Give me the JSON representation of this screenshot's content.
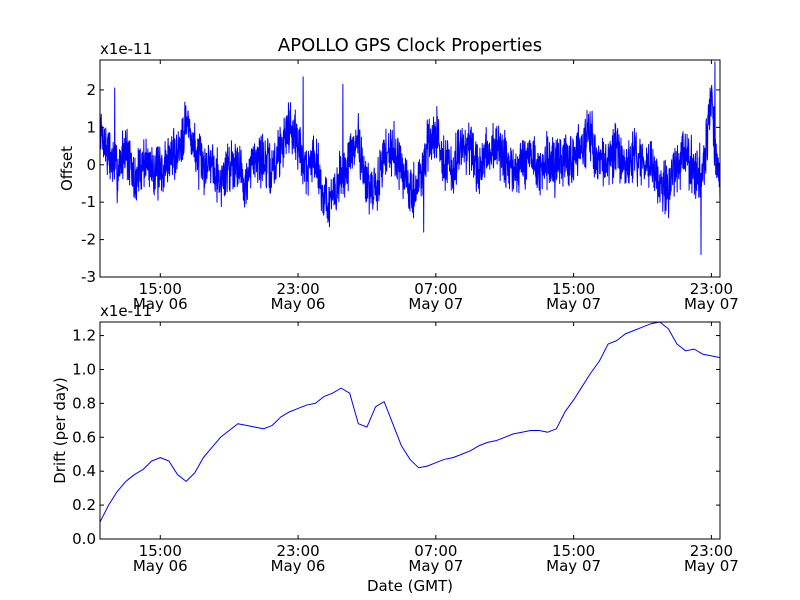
{
  "chart_data": [
    {
      "type": "line",
      "title": "APOLLO GPS Clock Properties",
      "ylabel": "Offset",
      "xlabel": "",
      "scale_label": "x1e-11",
      "ylim": [
        -3,
        2.8
      ],
      "yticks": [
        -3,
        -2,
        -1,
        0,
        1,
        2
      ],
      "ytick_labels": [
        "-3",
        "-2",
        "-1",
        "0",
        "1",
        "2"
      ],
      "xlim_hours": [
        11.5,
        47.5
      ],
      "xticks": [
        {
          "time": "15:00",
          "date": "May 06",
          "hour": 15
        },
        {
          "time": "23:00",
          "date": "May 06",
          "hour": 23
        },
        {
          "time": "07:00",
          "date": "May 07",
          "hour": 31
        },
        {
          "time": "15:00",
          "date": "May 07",
          "hour": 39
        },
        {
          "time": "23:00",
          "date": "May 07",
          "hour": 47
        }
      ],
      "color": "#0000ff",
      "grid": false,
      "series": [
        {
          "x": [
            11.5,
            12,
            12.5,
            13,
            13.5,
            14,
            14.5,
            15,
            15.5,
            16,
            16.5,
            17,
            17.5,
            18,
            18.5,
            19,
            19.5,
            20,
            20.5,
            21,
            21.5,
            22,
            22.5,
            23,
            23.5,
            24,
            24.5,
            25,
            25.5,
            26,
            26.5,
            27,
            27.5,
            28,
            28.5,
            29,
            29.5,
            30,
            30.5,
            31,
            31.5,
            32,
            32.5,
            33,
            33.5,
            34,
            34.5,
            35,
            35.5,
            36,
            36.5,
            37,
            37.5,
            38,
            38.5,
            39,
            39.5,
            40,
            40.5,
            41,
            41.5,
            42,
            42.5,
            43,
            43.5,
            44,
            44.5,
            45,
            45.5,
            46,
            46.5,
            47,
            47.5
          ],
          "y": [
            0.9,
            0.3,
            -0.2,
            0.5,
            -0.5,
            0.1,
            0.0,
            -0.3,
            0.2,
            0.3,
            1.2,
            0.4,
            -0.1,
            0.2,
            -0.5,
            0.0,
            0.1,
            -0.6,
            0.3,
            0.1,
            -0.2,
            0.5,
            1.1,
            0.6,
            -0.2,
            0.3,
            -0.9,
            -1.0,
            -0.3,
            0.1,
            0.7,
            -0.6,
            -0.8,
            0.3,
            0.5,
            -0.1,
            -0.8,
            -0.5,
            0.4,
            0.9,
            0.1,
            -0.2,
            0.5,
            0.4,
            -0.3,
            0.3,
            0.5,
            0.1,
            -0.2,
            0.0,
            0.3,
            -0.2,
            0.1,
            -0.1,
            0.1,
            0.2,
            0.5,
            0.8,
            0.0,
            0.1,
            0.4,
            -0.2,
            0.3,
            -0.1,
            0.2,
            -0.5,
            -0.8,
            0.0,
            0.2,
            -0.1,
            -0.3,
            1.7,
            -1.0
          ],
          "extremes": [
            {
              "x": 12.35,
              "y": 2.05
            },
            {
              "x": 23.3,
              "y": 2.35
            },
            {
              "x": 25.6,
              "y": 2.15
            },
            {
              "x": 30.3,
              "y": -1.8
            },
            {
              "x": 46.4,
              "y": -2.4
            },
            {
              "x": 47.2,
              "y": 2.75
            }
          ]
        }
      ]
    },
    {
      "type": "line",
      "title": "",
      "ylabel": "Drift (per day)",
      "xlabel": "Date (GMT)",
      "scale_label": "x1e-11",
      "ylim": [
        0.0,
        1.28
      ],
      "yticks": [
        0.0,
        0.2,
        0.4,
        0.6,
        0.8,
        1.0,
        1.2
      ],
      "ytick_labels": [
        "0.0",
        "0.2",
        "0.4",
        "0.6",
        "0.8",
        "1.0",
        "1.2"
      ],
      "xlim_hours": [
        11.5,
        47.5
      ],
      "xticks": [
        {
          "time": "15:00",
          "date": "May 06",
          "hour": 15
        },
        {
          "time": "23:00",
          "date": "May 06",
          "hour": 23
        },
        {
          "time": "07:00",
          "date": "May 07",
          "hour": 31
        },
        {
          "time": "15:00",
          "date": "May 07",
          "hour": 39
        },
        {
          "time": "23:00",
          "date": "May 07",
          "hour": 47
        }
      ],
      "color": "#0000ff",
      "grid": false,
      "series": [
        {
          "x": [
            11.5,
            12,
            12.5,
            13,
            13.5,
            14,
            14.5,
            15,
            15.5,
            16,
            16.5,
            17,
            17.5,
            18,
            18.5,
            19,
            19.5,
            20,
            20.5,
            21,
            21.5,
            22,
            22.5,
            23,
            23.5,
            24,
            24.5,
            25,
            25.5,
            26,
            26.5,
            27,
            27.5,
            28,
            28.5,
            29,
            29.5,
            30,
            30.5,
            31,
            31.5,
            32,
            32.5,
            33,
            33.5,
            34,
            34.5,
            35,
            35.5,
            36,
            36.5,
            37,
            37.5,
            38,
            38.5,
            39,
            39.5,
            40,
            40.5,
            41,
            41.5,
            42,
            42.5,
            43,
            43.5,
            44,
            44.5,
            45,
            45.5,
            46,
            46.5,
            47,
            47.5
          ],
          "y": [
            0.1,
            0.2,
            0.28,
            0.34,
            0.38,
            0.41,
            0.46,
            0.48,
            0.46,
            0.38,
            0.34,
            0.39,
            0.48,
            0.54,
            0.6,
            0.64,
            0.68,
            0.67,
            0.66,
            0.65,
            0.67,
            0.72,
            0.75,
            0.77,
            0.79,
            0.8,
            0.84,
            0.86,
            0.89,
            0.86,
            0.68,
            0.66,
            0.78,
            0.81,
            0.68,
            0.55,
            0.47,
            0.42,
            0.43,
            0.45,
            0.47,
            0.48,
            0.5,
            0.52,
            0.55,
            0.57,
            0.58,
            0.6,
            0.62,
            0.63,
            0.64,
            0.64,
            0.63,
            0.65,
            0.75,
            0.82,
            0.9,
            0.98,
            1.05,
            1.15,
            1.17,
            1.21,
            1.23,
            1.25,
            1.27,
            1.28,
            1.24,
            1.15,
            1.11,
            1.12,
            1.09,
            1.08,
            1.07
          ]
        }
      ]
    }
  ]
}
